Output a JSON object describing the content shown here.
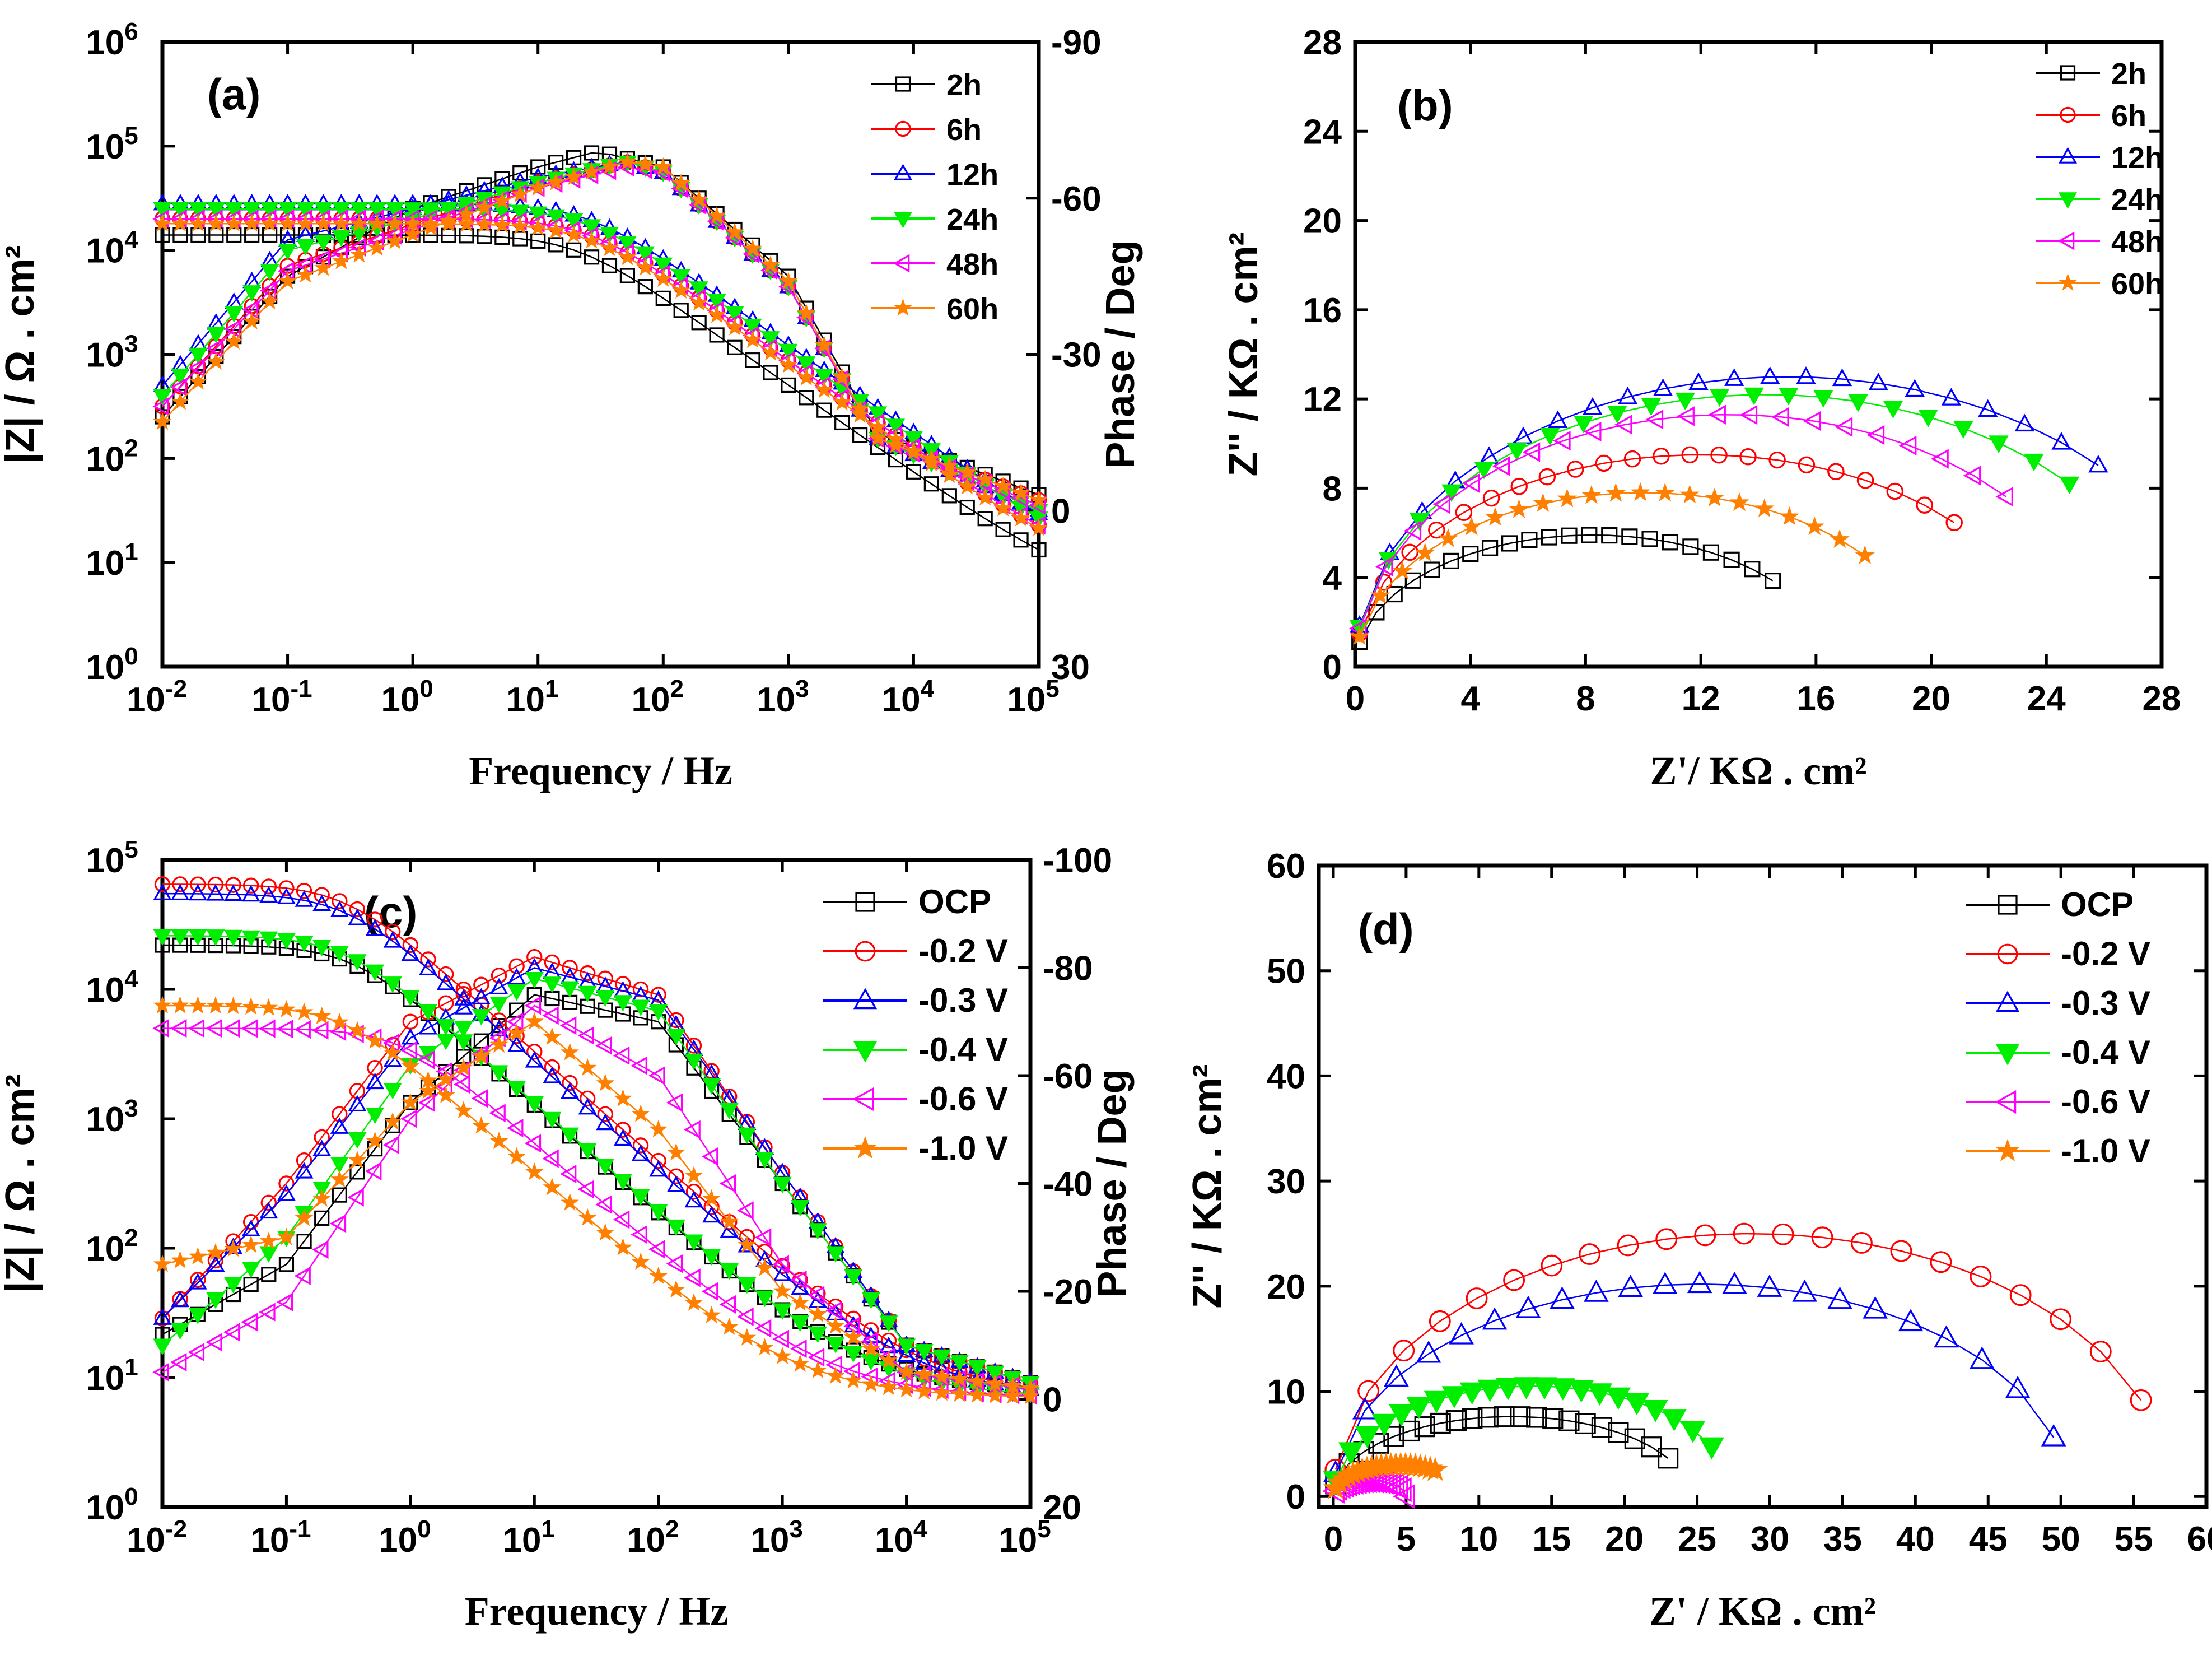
{
  "colors": {
    "2h": "#000000",
    "6h": "#ff0000",
    "12h": "#0000ff",
    "24h": "#00ee00",
    "48h": "#ff00ff",
    "60h": "#ff8000",
    "OCP": "#000000",
    "-0.2 V": "#ff0000",
    "-0.3 V": "#0000ff",
    "-0.4 V": "#00ee00",
    "-0.6 V": "#ff00ff",
    "-1.0 V": "#ff8000"
  },
  "chart_data": [
    {
      "panel": "(a)",
      "type": "line",
      "xlabel": "Frequency / Hz",
      "ylabel": "|Z| / Ω . cm²",
      "y2label": "Phase / Deg",
      "x_scale": "log",
      "xlim": [
        0.01,
        100000
      ],
      "y_scale": "log",
      "ylim": [
        1,
        1000000
      ],
      "y2lim": [
        30,
        -90
      ],
      "x_ticks": [
        "10-2",
        "10-1",
        "100",
        "101",
        "102",
        "103",
        "104",
        "105"
      ],
      "y_ticks": [
        "100",
        "101",
        "102",
        "103",
        "104",
        "105",
        "106"
      ],
      "y2_ticks": [
        "-90",
        "-60",
        "-30",
        "0",
        "30"
      ],
      "legend": [
        "2h",
        "6h",
        "12h",
        "24h",
        "48h",
        "60h"
      ],
      "series": [
        {
          "name": "2h",
          "marker": "square",
          "Z_low": 14000,
          "Z_high": 3.2,
          "fc": 20,
          "phase": [
            [
              0.01,
              -18
            ],
            [
              0.1,
              -45
            ],
            [
              1,
              -58
            ],
            [
              10,
              -66
            ],
            [
              30,
              -69
            ],
            [
              100,
              -66
            ],
            [
              1000,
              -45
            ],
            [
              5000,
              -15
            ],
            [
              100000,
              -3
            ]
          ]
        },
        {
          "name": "6h",
          "marker": "circle",
          "Z_low": 20000,
          "Z_high": 5.5,
          "fc": 25,
          "phase": [
            [
              0.01,
              -20
            ],
            [
              0.1,
              -47
            ],
            [
              1,
              -55
            ],
            [
              10,
              -63
            ],
            [
              50,
              -67
            ],
            [
              100,
              -65
            ],
            [
              1000,
              -43
            ],
            [
              5000,
              -14
            ],
            [
              100000,
              -2
            ]
          ]
        },
        {
          "name": "12h",
          "marker": "triangle-up",
          "Z_low": 28000,
          "Z_high": 5.2,
          "fc": 25,
          "phase": [
            [
              0.01,
              -24
            ],
            [
              0.1,
              -52
            ],
            [
              1,
              -58
            ],
            [
              10,
              -64
            ],
            [
              50,
              -67
            ],
            [
              100,
              -65
            ],
            [
              1000,
              -43
            ],
            [
              5000,
              -14
            ],
            [
              100000,
              0
            ]
          ]
        },
        {
          "name": "24h",
          "marker": "triangle-down",
          "Z_low": 25000,
          "Z_high": 5.0,
          "fc": 25,
          "phase": [
            [
              0.01,
              -22
            ],
            [
              0.1,
              -50
            ],
            [
              1,
              -56
            ],
            [
              10,
              -63
            ],
            [
              50,
              -67
            ],
            [
              100,
              -65
            ],
            [
              1000,
              -43
            ],
            [
              5000,
              -14
            ],
            [
              100000,
              0
            ]
          ]
        },
        {
          "name": "48h",
          "marker": "triangle-left",
          "Z_low": 20000,
          "Z_high": 5.4,
          "fc": 25,
          "phase": [
            [
              0.01,
              -20
            ],
            [
              0.1,
              -46
            ],
            [
              1,
              -54
            ],
            [
              10,
              -62
            ],
            [
              50,
              -66
            ],
            [
              100,
              -65
            ],
            [
              1000,
              -43
            ],
            [
              5000,
              -14
            ],
            [
              100000,
              -1
            ]
          ]
        },
        {
          "name": "60h",
          "marker": "star",
          "Z_low": 18000,
          "Z_high": 5.8,
          "fc": 25,
          "phase": [
            [
              0.01,
              -17
            ],
            [
              0.1,
              -44
            ],
            [
              1,
              -53
            ],
            [
              10,
              -62
            ],
            [
              50,
              -67
            ],
            [
              100,
              -66
            ],
            [
              1000,
              -44
            ],
            [
              5000,
              -14
            ],
            [
              100000,
              -2
            ]
          ]
        }
      ]
    },
    {
      "panel": "(b)",
      "type": "scatter",
      "xlabel": "Z'/ KΩ . cm²",
      "ylabel": "Z'' / KΩ . cm²",
      "xlim": [
        0,
        28
      ],
      "ylim": [
        0,
        28
      ],
      "x_ticks": [
        0,
        4,
        8,
        12,
        16,
        20,
        24,
        28
      ],
      "y_ticks": [
        0,
        4,
        8,
        12,
        16,
        20,
        24,
        28
      ],
      "legend": [
        "2h",
        "6h",
        "12h",
        "24h",
        "48h",
        "60h"
      ],
      "series": [
        {
          "name": "2h",
          "marker": "square",
          "R": 16.5,
          "xmax": 14.5,
          "peak": 5.9
        },
        {
          "name": "6h",
          "marker": "circle",
          "R": 24.0,
          "xmax": 20.8,
          "peak": 9.5
        },
        {
          "name": "12h",
          "marker": "triangle-up",
          "R": 30.0,
          "xmax": 25.8,
          "peak": 13.0
        },
        {
          "name": "24h",
          "marker": "triangle-down",
          "R": 28.5,
          "xmax": 24.8,
          "peak": 12.2
        },
        {
          "name": "48h",
          "marker": "triangle-left",
          "R": 26.0,
          "xmax": 22.6,
          "peak": 11.3
        },
        {
          "name": "60h",
          "marker": "star",
          "R": 20.0,
          "xmax": 17.7,
          "peak": 7.8
        }
      ]
    },
    {
      "panel": "(c)",
      "type": "line",
      "xlabel": "Frequency / Hz",
      "ylabel": "|Z| / Ω . cm²",
      "y2label": "Phase / Deg",
      "x_scale": "log",
      "xlim": [
        0.01,
        100000
      ],
      "y_scale": "log",
      "ylim": [
        1,
        100000
      ],
      "y2lim": [
        20,
        -100
      ],
      "x_ticks": [
        "10-2",
        "10-1",
        "100",
        "101",
        "102",
        "103",
        "104",
        "105"
      ],
      "y_ticks": [
        "100",
        "101",
        "102",
        "103",
        "104",
        "105"
      ],
      "y2_ticks": [
        "-100",
        "-80",
        "-60",
        "-40",
        "-20",
        "0",
        "20"
      ],
      "legend": [
        "OCP",
        "-0.2 V",
        "-0.3 V",
        "-0.4 V",
        "-0.6 V",
        "-1.0 V"
      ],
      "series": [
        {
          "name": "OCP",
          "marker": "square",
          "Z_low": 22000,
          "Z_high": 8,
          "fc": 0.35,
          "phase": [
            [
              0.01,
              -12
            ],
            [
              0.1,
              -25
            ],
            [
              1,
              -55
            ],
            [
              10,
              -75
            ],
            [
              100,
              -70
            ],
            [
              1000,
              -40
            ],
            [
              10000,
              -10
            ],
            [
              100000,
              -3
            ]
          ]
        },
        {
          "name": "-0.2 V",
          "marker": "circle",
          "Z_low": 65000,
          "Z_high": 7,
          "fc": 0.3,
          "phase": [
            [
              0.01,
              -15
            ],
            [
              0.1,
              -40
            ],
            [
              1,
              -70
            ],
            [
              10,
              -82
            ],
            [
              100,
              -75
            ],
            [
              1000,
              -42
            ],
            [
              10000,
              -10
            ],
            [
              100000,
              -3
            ]
          ]
        },
        {
          "name": "-0.3 V",
          "marker": "triangle-up",
          "Z_low": 55000,
          "Z_high": 7,
          "fc": 0.3,
          "phase": [
            [
              0.01,
              -15
            ],
            [
              0.1,
              -38
            ],
            [
              1,
              -67
            ],
            [
              10,
              -80
            ],
            [
              100,
              -74
            ],
            [
              1000,
              -42
            ],
            [
              10000,
              -10
            ],
            [
              100000,
              -3
            ]
          ]
        },
        {
          "name": "-0.4 V",
          "marker": "triangle-down",
          "Z_low": 26000,
          "Z_high": 7,
          "fc": 0.3,
          "phase": [
            [
              0.01,
              -10
            ],
            [
              0.1,
              -30
            ],
            [
              1,
              -62
            ],
            [
              10,
              -78
            ],
            [
              100,
              -72
            ],
            [
              1000,
              -40
            ],
            [
              10000,
              -10
            ],
            [
              100000,
              -3
            ]
          ]
        },
        {
          "name": "-0.6 V",
          "marker": "triangle-left",
          "Z_low": 5000,
          "Z_high": 7,
          "fc": 0.9,
          "phase": [
            [
              0.01,
              -5
            ],
            [
              0.1,
              -18
            ],
            [
              1,
              -52
            ],
            [
              10,
              -73
            ],
            [
              100,
              -60
            ],
            [
              1000,
              -25
            ],
            [
              10000,
              -5
            ],
            [
              100000,
              -2
            ]
          ]
        },
        {
          "name": "-1.0 V",
          "marker": "star",
          "Z_low": 7500,
          "Z_high": 7,
          "fc": 0.3,
          "phase": [
            [
              0.01,
              -25
            ],
            [
              0.1,
              -30
            ],
            [
              1,
              -55
            ],
            [
              10,
              -70
            ],
            [
              100,
              -50
            ],
            [
              1000,
              -20
            ],
            [
              10000,
              -5
            ],
            [
              100000,
              -2
            ]
          ]
        }
      ]
    },
    {
      "panel": "(d)",
      "type": "scatter",
      "xlabel": "Z' / KΩ . cm²",
      "ylabel": "Z'' / KΩ . cm²",
      "xlim": [
        -1,
        60
      ],
      "ylim": [
        -1,
        60
      ],
      "x_ticks": [
        0,
        5,
        10,
        15,
        20,
        25,
        30,
        35,
        40,
        45,
        50,
        55,
        60
      ],
      "y_ticks": [
        0,
        10,
        20,
        30,
        40,
        50,
        60
      ],
      "legend": [
        "OCP",
        "-0.2 V",
        "-0.3 V",
        "-0.4 V",
        "-0.6 V",
        "-1.0 V"
      ],
      "series": [
        {
          "name": "OCP",
          "marker": "square",
          "R": 24.5,
          "xmax": 23,
          "peak": 7.6
        },
        {
          "name": "-0.2 V",
          "marker": "circle",
          "R": 57.5,
          "xmax": 55.5,
          "peak": 25.0
        },
        {
          "name": "-0.3 V",
          "marker": "triangle-up",
          "R": 50.5,
          "xmax": 49.5,
          "peak": 20.2
        },
        {
          "name": "-0.4 V",
          "marker": "triangle-down",
          "R": 27.5,
          "xmax": 26,
          "peak": 10.5
        },
        {
          "name": "-0.6 V",
          "marker": "triangle-left",
          "R": 5.0,
          "xmax": 5,
          "peak": 1.5
        },
        {
          "name": "-1.0 V",
          "marker": "star",
          "R": 9.0,
          "xmax": 7,
          "peak": 3.0
        }
      ]
    }
  ]
}
